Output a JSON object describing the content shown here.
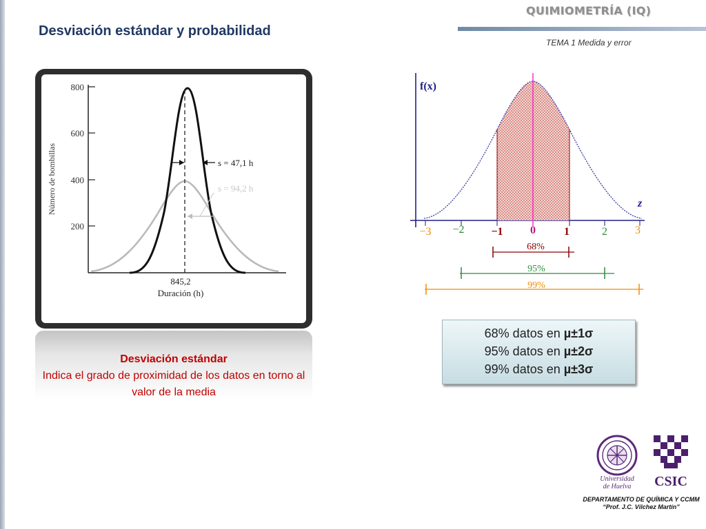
{
  "header": {
    "course": "QUIMIOMETRÍA (IQ)",
    "topic": "TEMA 1 Medida y error"
  },
  "slide_title": "Desviación estándar y probabilidad",
  "left_figure": {
    "y_axis_label": "Número de bombillas",
    "x_axis_label": "Duración (h)",
    "y_ticks": [
      "800",
      "600",
      "400",
      "200"
    ],
    "mean_label": "845,2",
    "narrow_curve_label": "s = 47,1 h",
    "wide_curve_label": "s = 94,2 h"
  },
  "caption": {
    "heading": "Desviación estándar",
    "text": "Indica el grado de proximidad de los datos en torno al valor de la media"
  },
  "right_figure": {
    "y_label": "f(x)",
    "x_label": "z",
    "ticks": [
      "−3",
      "−2",
      "−1",
      "0",
      "1",
      "2",
      "3"
    ],
    "intervals": [
      "68%",
      "95%",
      "99%"
    ],
    "colors": {
      "curve": "#3a3aa8",
      "axis": "#1f1f8a",
      "shade": "#c45a5a",
      "center_line": "#ff2bd0",
      "interval_68": "#8b0000",
      "interval_95": "#2e8b3a",
      "interval_99": "#f08c00"
    }
  },
  "info_box": {
    "rows": [
      {
        "text": "68% datos en ",
        "emphasis": "µ±1σ"
      },
      {
        "text": "95% datos en ",
        "emphasis": "µ±2σ"
      },
      {
        "text": "99% datos en ",
        "emphasis": "µ±3σ"
      }
    ]
  },
  "logos": {
    "university_lines": [
      "Universidad",
      "de Huelva"
    ],
    "csic": "CSIC"
  },
  "footer": {
    "department": "DEPARTAMENTO DE QUÍMICA Y CCMM",
    "professor": "“Prof. J.C. Vílchez Martín”"
  }
}
